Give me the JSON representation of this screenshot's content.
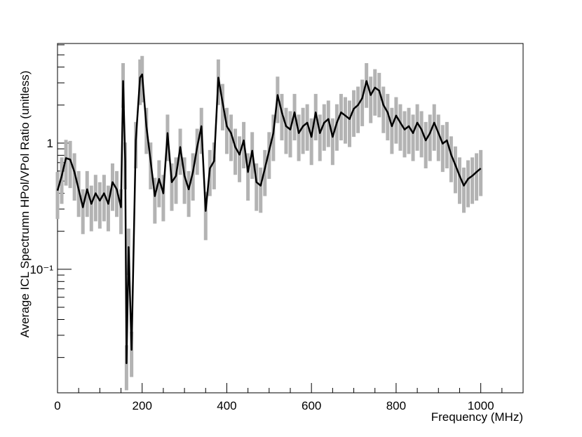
{
  "chart_data": {
    "type": "line",
    "xlabel": "Frequency (MHz)",
    "ylabel": "Average ICL Spectrumn HPol/VPol Ratio (unitless)",
    "xlim": [
      0,
      1100
    ],
    "xticks": [
      0,
      200,
      400,
      600,
      800,
      1000
    ],
    "ylim": [
      0.0105,
      6.15
    ],
    "yticks": [
      {
        "value": 0.1,
        "label": "10⁻¹"
      },
      1
    ],
    "log_y": true,
    "x": [
      0,
      10,
      20,
      30,
      40,
      50,
      60,
      70,
      80,
      90,
      100,
      110,
      120,
      130,
      140,
      150,
      155,
      160,
      163,
      168,
      175,
      185,
      195,
      200,
      210,
      220,
      230,
      240,
      250,
      260,
      270,
      280,
      290,
      300,
      310,
      320,
      330,
      340,
      350,
      360,
      370,
      380,
      390,
      400,
      410,
      420,
      430,
      440,
      450,
      460,
      470,
      480,
      490,
      500,
      510,
      520,
      530,
      540,
      550,
      560,
      570,
      580,
      590,
      600,
      610,
      620,
      630,
      640,
      650,
      660,
      670,
      680,
      690,
      700,
      710,
      720,
      730,
      740,
      750,
      760,
      770,
      780,
      790,
      800,
      810,
      820,
      830,
      840,
      850,
      860,
      870,
      880,
      890,
      900,
      910,
      920,
      930,
      940,
      950,
      960,
      970,
      980,
      990,
      1000
    ],
    "series": [
      {
        "color": "#000000",
        "error_color": "#b3b3b3",
        "values": [
          0.42,
          0.55,
          0.76,
          0.74,
          0.59,
          0.43,
          0.31,
          0.43,
          0.33,
          0.4,
          0.35,
          0.4,
          0.33,
          0.49,
          0.43,
          0.31,
          3.1,
          0.72,
          0.018,
          0.15,
          0.023,
          1.05,
          3.3,
          3.5,
          1.36,
          0.72,
          0.38,
          0.52,
          0.4,
          1.2,
          0.49,
          0.55,
          0.93,
          0.55,
          0.43,
          0.59,
          0.93,
          1.36,
          0.29,
          0.63,
          0.72,
          3.3,
          2.1,
          1.36,
          1.2,
          0.93,
          0.81,
          1.05,
          0.59,
          0.87,
          0.49,
          0.46,
          0.63,
          0.87,
          1.2,
          2.4,
          1.75,
          1.36,
          1.28,
          1.75,
          1.2,
          1.36,
          1.45,
          1.12,
          1.75,
          1.2,
          1.45,
          1.55,
          1.12,
          1.45,
          1.75,
          1.65,
          1.55,
          1.87,
          2.0,
          2.27,
          3.1,
          2.4,
          2.75,
          2.6,
          2.0,
          1.75,
          1.36,
          1.65,
          1.45,
          1.28,
          1.36,
          1.2,
          1.45,
          1.28,
          1.05,
          1.2,
          1.45,
          1.2,
          0.99,
          1.05,
          0.81,
          0.67,
          0.55,
          0.46,
          0.52,
          0.55,
          0.59,
          0.63
        ],
        "errors": [
          0.17,
          0.22,
          0.3,
          0.3,
          0.24,
          0.17,
          0.12,
          0.17,
          0.13,
          0.16,
          0.14,
          0.16,
          0.13,
          0.2,
          0.17,
          0.12,
          1.2,
          0.29,
          0.007,
          0.06,
          0.009,
          0.42,
          1.3,
          1.4,
          0.54,
          0.29,
          0.15,
          0.21,
          0.16,
          0.48,
          0.2,
          0.22,
          0.37,
          0.22,
          0.17,
          0.24,
          0.37,
          0.54,
          0.12,
          0.25,
          0.29,
          1.3,
          0.84,
          0.54,
          0.48,
          0.37,
          0.32,
          0.42,
          0.24,
          0.35,
          0.2,
          0.18,
          0.25,
          0.35,
          0.48,
          0.96,
          0.7,
          0.54,
          0.51,
          0.7,
          0.48,
          0.54,
          0.58,
          0.45,
          0.7,
          0.48,
          0.58,
          0.62,
          0.45,
          0.58,
          0.7,
          0.66,
          0.62,
          0.75,
          0.8,
          0.91,
          1.2,
          0.96,
          1.1,
          1.0,
          0.8,
          0.7,
          0.54,
          0.66,
          0.58,
          0.51,
          0.54,
          0.48,
          0.58,
          0.51,
          0.42,
          0.48,
          0.58,
          0.48,
          0.4,
          0.42,
          0.32,
          0.27,
          0.22,
          0.18,
          0.21,
          0.22,
          0.24,
          0.25
        ]
      }
    ]
  }
}
